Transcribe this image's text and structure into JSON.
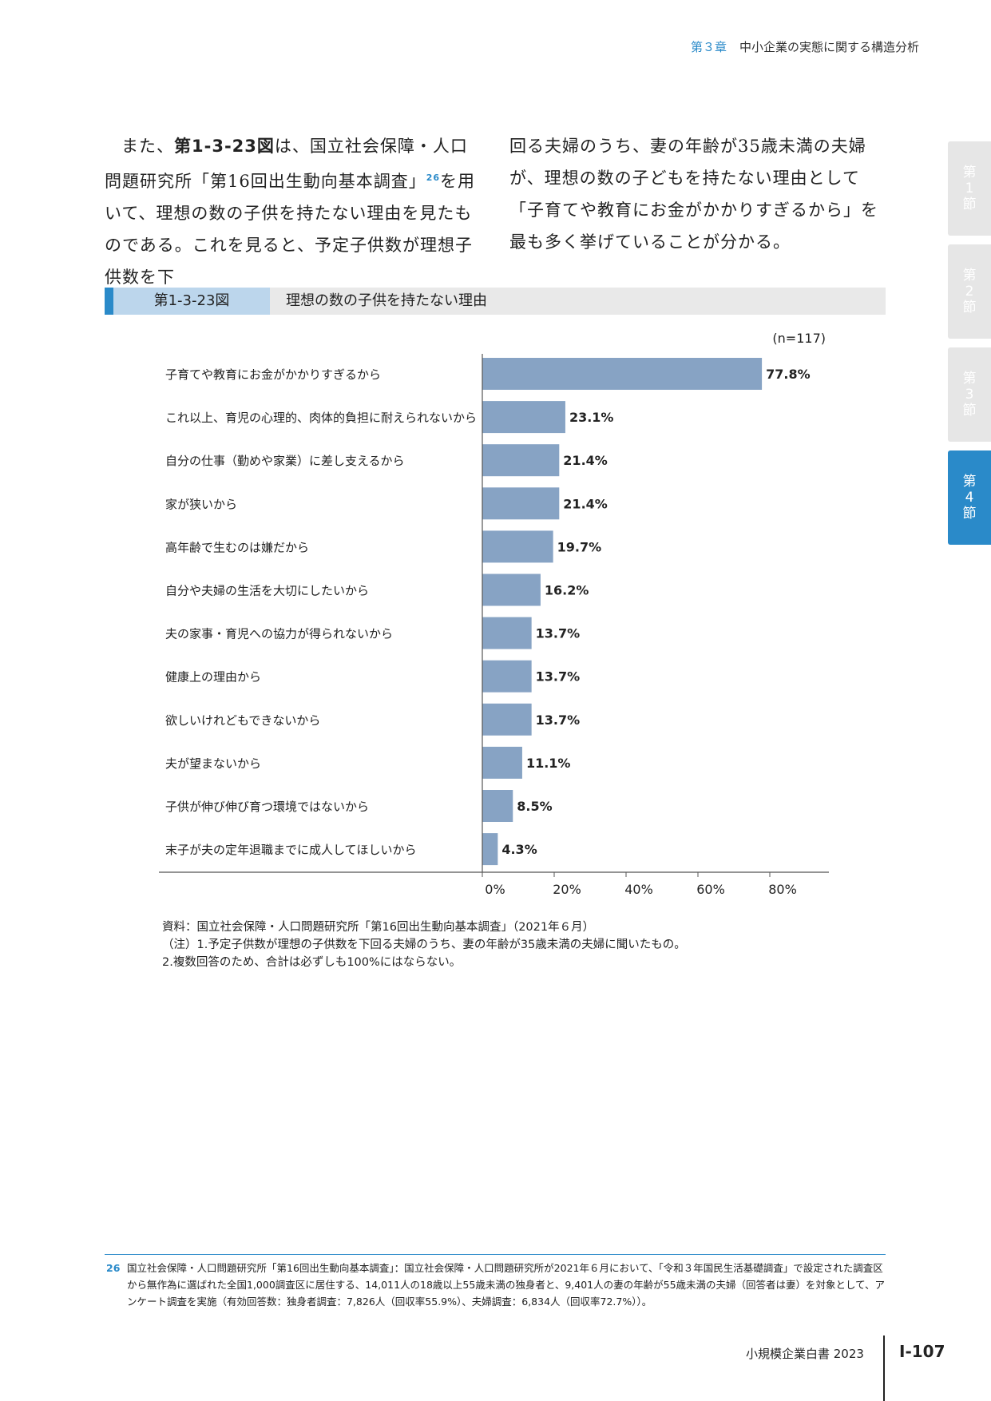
{
  "header": {
    "chapter": "第３章",
    "title": "中小企業の実態に関する構造分析"
  },
  "side_tabs": [
    {
      "l1": "第",
      "l2": "1",
      "l3": "節"
    },
    {
      "l1": "第",
      "l2": "2",
      "l3": "節"
    },
    {
      "l1": "第",
      "l2": "3",
      "l3": "節"
    },
    {
      "l1": "第",
      "l2": "4",
      "l3": "節"
    }
  ],
  "body_text": {
    "left": {
      "p1": "また、",
      "fig_ref": "第1-3-23図",
      "p2": "は、国立社会保障・人口問題研究所「第16回出生動向基本調査」",
      "sup": "26",
      "p3": "を用いて、理想の数の子供を持たない理由を見たものである。これを見ると、予定子供数が理想子供数を下"
    },
    "right": "回る夫婦のうち、妻の年齢が35歳未満の夫婦が、理想の数の子どもを持たない理由として「子育てや教育にお金がかかりすぎるから」を最も多く挙げていることが分かる。"
  },
  "figure": {
    "number": "第1-3-23図",
    "title": "理想の数の子供を持たない理由"
  },
  "chart_data": {
    "type": "bar",
    "orientation": "horizontal",
    "n_label": "(n=117)",
    "categories": [
      "子育てや教育にお金がかかりすぎるから",
      "これ以上、育児の心理的、肉体的負担に耐えられないから",
      "自分の仕事（勤めや家業）に差し支えるから",
      "家が狭いから",
      "高年齢で生むのは嫌だから",
      "自分や夫婦の生活を大切にしたいから",
      "夫の家事・育児への協力が得られないから",
      "健康上の理由から",
      "欲しいけれどもできないから",
      "夫が望まないから",
      "子供が伸び伸び育つ環境ではないから",
      "末子が夫の定年退職までに成人してほしいから"
    ],
    "values": [
      77.8,
      23.1,
      21.4,
      21.4,
      19.7,
      16.2,
      13.7,
      13.7,
      13.7,
      11.1,
      8.5,
      4.3
    ],
    "value_labels": [
      "77.8%",
      "23.1%",
      "21.4%",
      "21.4%",
      "19.7%",
      "16.2%",
      "13.7%",
      "13.7%",
      "13.7%",
      "11.1%",
      "8.5%",
      "4.3%"
    ],
    "xticks": [
      "0%",
      "20%",
      "40%",
      "60%",
      "80%"
    ],
    "xtick_values": [
      0,
      20,
      40,
      60,
      80
    ],
    "xlim": [
      0,
      96
    ],
    "bar_color": "#87a3c4",
    "grid": false
  },
  "notes": [
    "資料：国立社会保障・人口問題研究所「第16回出生動向基本調査」（2021年６月）",
    "（注）1.予定子供数が理想の子供数を下回る夫婦のうち、妻の年齢が35歳未満の夫婦に聞いたもの。",
    "2.複数回答のため、合計は必ずしも100%にはならない。"
  ],
  "footnote": {
    "number": "26",
    "text": "国立社会保障・人口問題研究所「第16回出生動向基本調査」：国立社会保障・人口問題研究所が2021年６月において、「令和３年国民生活基礎調査」で設定された調査区から無作為に選ばれた全国1,000調査区に居住する、14,011人の18歳以上55歳未満の独身者と、9,401人の妻の年齢が55歳未満の夫婦（回答者は妻）を対象として、アンケート調査を実施（有効回答数：独身者調査：7,826人（回収率55.9%）、夫婦調査：6,834人（回収率72.7%））。"
  },
  "footer": {
    "book": "小規模企業白書  2023",
    "page": "Ⅰ-107"
  },
  "colors": {
    "accent": "#2a8ac9",
    "bar": "#87a3c4",
    "fig_num_bg": "#bcd6ec",
    "tab_inactive": "#e6e6e6"
  }
}
